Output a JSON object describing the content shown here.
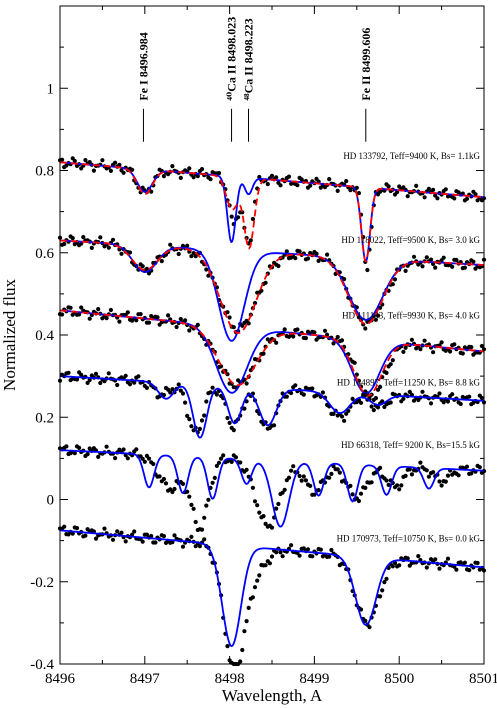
{
  "chart_data": {
    "type": "line",
    "xlabel": "Wavelength, A",
    "ylabel": "Normalized flux",
    "xlim": [
      8496,
      8501
    ],
    "ylim": [
      -0.4,
      1.2
    ],
    "x_ticks": [
      "8496",
      "8497",
      "8498",
      "8499",
      "8500",
      "8501"
    ],
    "y_ticks": [
      "-0.4",
      "-0.2",
      "0",
      "0.2",
      "0.4",
      "0.6",
      "0.8",
      "1"
    ],
    "colors": {
      "observed": "#000000",
      "model_solid": "#0000ff",
      "model_dashed": "#ff0000"
    },
    "line_ids": [
      {
        "label": "Fe I 8496.984",
        "wavelength": 8496.984
      },
      {
        "label": "⁴⁰Ca II 8498.023",
        "wavelength": 8498.023
      },
      {
        "label": "⁴⁸Ca II 8498.223",
        "wavelength": 8498.223
      },
      {
        "label": "Fe II 8499.606",
        "wavelength": 8499.606
      }
    ],
    "stars": [
      {
        "label": "HD 133792, Teff=9400 K, Bs= 1.1kG",
        "label_y": 0.828,
        "cont": 0.82,
        "slope": -0.017,
        "obs": [
          [
            8497.0,
            -0.058,
            0.09
          ],
          [
            8498.045,
            -0.11,
            0.06
          ],
          [
            8498.22,
            -0.16,
            0.055
          ],
          [
            8499.62,
            -0.19,
            0.048
          ]
        ],
        "blue": [
          [
            8497.0,
            -0.055,
            0.09
          ],
          [
            8498.023,
            -0.16,
            0.05
          ],
          [
            8498.223,
            -0.04,
            0.045
          ],
          [
            8499.606,
            -0.18,
            0.05
          ]
        ],
        "red": [
          [
            8497.0,
            -0.06,
            0.09
          ],
          [
            8498.03,
            -0.08,
            0.07
          ],
          [
            8498.23,
            -0.17,
            0.06
          ],
          [
            8499.606,
            -0.18,
            0.05
          ]
        ]
      },
      {
        "label": "HD 118022, Teff=9500 K, Bs= 3.0 kG",
        "label_y": 0.624,
        "cont": 0.63,
        "slope": -0.012,
        "obs": [
          [
            8497.0,
            -0.06,
            0.15
          ],
          [
            8498.1,
            -0.19,
            0.22
          ],
          [
            8499.62,
            -0.16,
            0.2
          ]
        ],
        "blue": [
          [
            8497.0,
            -0.065,
            0.14
          ],
          [
            8498.023,
            -0.22,
            0.15
          ],
          [
            8499.606,
            -0.15,
            0.2
          ]
        ],
        "red": [
          [
            8497.0,
            -0.06,
            0.15
          ],
          [
            8498.1,
            -0.2,
            0.21
          ],
          [
            8499.606,
            -0.16,
            0.2
          ]
        ]
      },
      {
        "label": "HD 111133, Teff=9930 K, Bs= 4.0 kG",
        "label_y": 0.44,
        "cont": 0.46,
        "slope": -0.02,
        "obs": [
          [
            8498.08,
            -0.14,
            0.22
          ],
          [
            8499.66,
            -0.14,
            0.16
          ]
        ],
        "blue": [
          [
            8498.023,
            -0.16,
            0.18
          ],
          [
            8499.606,
            -0.13,
            0.16
          ]
        ],
        "red": [
          [
            8498.09,
            -0.14,
            0.22
          ],
          [
            8499.63,
            -0.135,
            0.16
          ]
        ]
      },
      {
        "label": "HD 144897, Teff=11250 K, Bs= 8.8 kG",
        "label_y": 0.277,
        "cont": 0.3,
        "slope": -0.012,
        "obs": [
          [
            8497.2,
            -0.03,
            0.1
          ],
          [
            8497.6,
            -0.12,
            0.09
          ],
          [
            8498.05,
            -0.1,
            0.09
          ],
          [
            8498.45,
            -0.1,
            0.1
          ],
          [
            8499.3,
            -0.06,
            0.12
          ],
          [
            8499.75,
            -0.03,
            0.1
          ]
        ],
        "blue": [
          [
            8497.25,
            -0.04,
            0.09
          ],
          [
            8497.65,
            -0.13,
            0.08
          ],
          [
            8498.06,
            -0.09,
            0.08
          ],
          [
            8498.45,
            -0.09,
            0.1
          ],
          [
            8499.3,
            -0.05,
            0.12
          ],
          [
            8499.75,
            -0.025,
            0.1
          ]
        ]
      },
      {
        "label": "HD 66318, Teff= 9200 K, Bs=15.5 kG",
        "label_y": 0.125,
        "cont": 0.12,
        "slope": -0.01,
        "obs": [
          [
            8497.3,
            -0.08,
            0.14
          ],
          [
            8497.65,
            -0.17,
            0.1
          ],
          [
            8498.45,
            -0.16,
            0.14
          ],
          [
            8499.0,
            -0.07,
            0.12
          ],
          [
            8499.5,
            -0.08,
            0.12
          ],
          [
            8499.95,
            -0.05,
            0.1
          ],
          [
            8500.5,
            -0.03,
            0.09
          ]
        ],
        "blue": [
          [
            8497.05,
            -0.08,
            0.06
          ],
          [
            8497.45,
            -0.09,
            0.06
          ],
          [
            8497.8,
            -0.1,
            0.06
          ],
          [
            8498.2,
            -0.06,
            0.06
          ],
          [
            8498.6,
            -0.16,
            0.1
          ],
          [
            8499.05,
            -0.08,
            0.06
          ],
          [
            8499.45,
            -0.09,
            0.06
          ],
          [
            8499.85,
            -0.07,
            0.06
          ],
          [
            8500.35,
            -0.05,
            0.06
          ]
        ]
      },
      {
        "label": "HD 170973, Teff=10750 K, Bs= 0.0 kG",
        "label_y": -0.102,
        "cont": -0.075,
        "slope": -0.018,
        "obs": [
          [
            8498.05,
            -0.29,
            0.12
          ],
          [
            8498.28,
            -0.06,
            0.14
          ],
          [
            8499.62,
            -0.16,
            0.14
          ]
        ],
        "blue": [
          [
            8498.023,
            -0.245,
            0.11
          ],
          [
            8499.606,
            -0.165,
            0.12
          ]
        ]
      }
    ]
  }
}
